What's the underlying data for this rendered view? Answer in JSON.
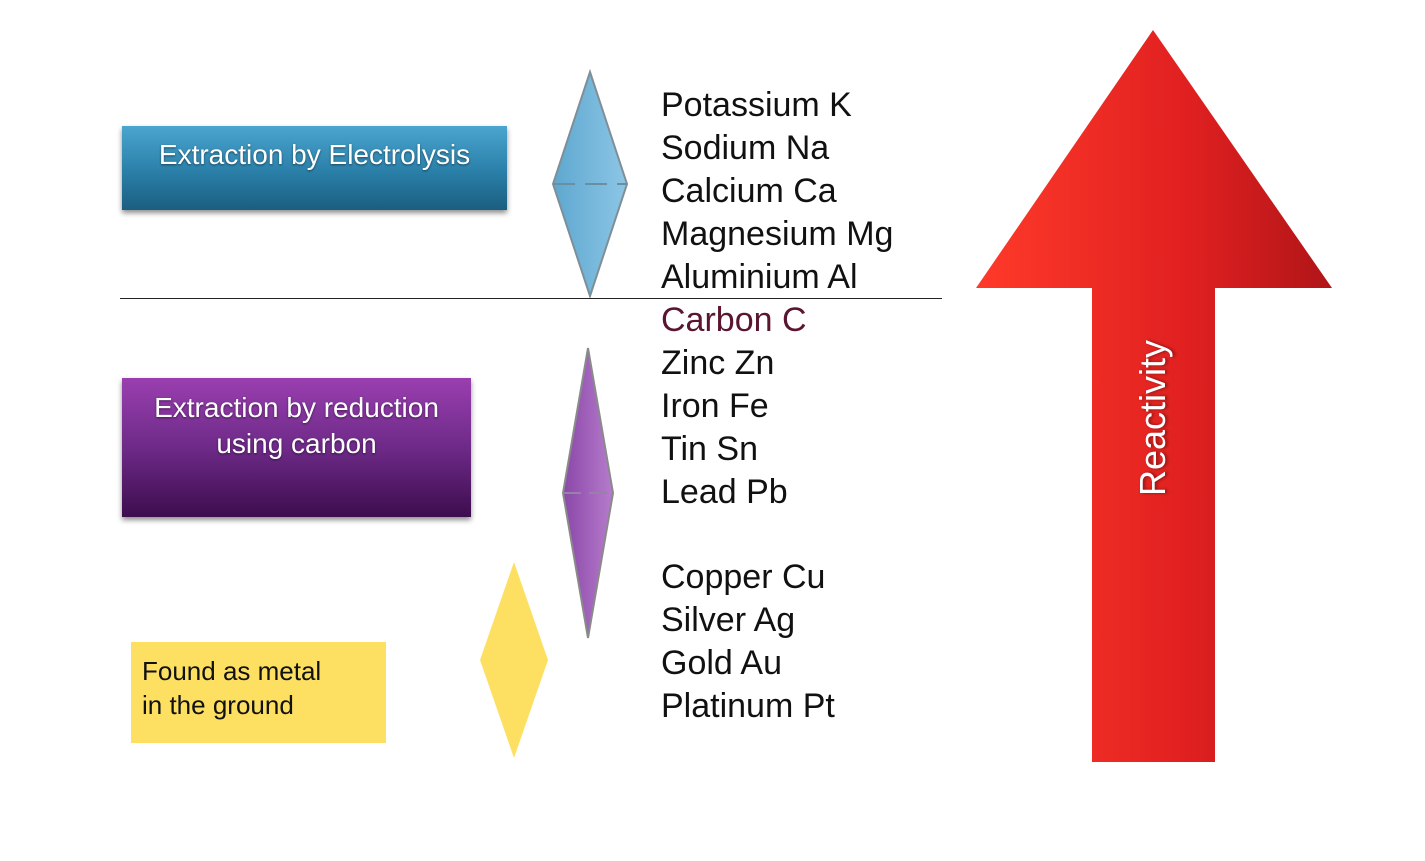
{
  "methods": {
    "electrolysis": {
      "label": "Extraction by Electrolysis"
    },
    "carbon_reduction": {
      "line1": "Extraction by reduction",
      "line2": "using carbon"
    },
    "found_native": {
      "line1": "Found as metal",
      "line2": "in the ground"
    }
  },
  "series": [
    "Potassium K",
    "Sodium Na",
    "Calcium Ca",
    "Magnesium Mg",
    "Aluminium Al",
    "Carbon C",
    "Zinc Zn",
    "Iron Fe",
    "Tin Sn",
    "Lead Pb",
    "Copper Cu",
    "Silver Ag",
    "Gold Au",
    "Platinum Pt"
  ],
  "arrow": {
    "label": "Reactivity"
  },
  "colors": {
    "electrolysis": "#2a7fa8",
    "carbon_reduction": "#6e2a88",
    "found_native": "#fde061",
    "carbon_highlight": "#5a1530",
    "arrow": "#e02020"
  }
}
